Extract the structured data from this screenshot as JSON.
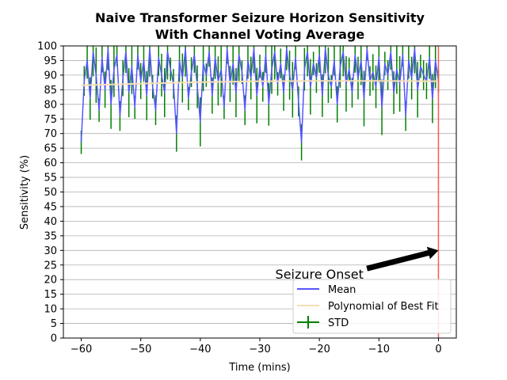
{
  "chart_data": {
    "type": "line",
    "title": "Naive Transformer Seizure Horizon Sensitivity",
    "subtitle": "With Channel Voting Average",
    "xlabel": "Time (mins)",
    "ylabel": "Sensitivity (%)",
    "xlim": [
      -63,
      3
    ],
    "ylim": [
      0,
      100
    ],
    "xticks": [
      -60,
      -50,
      -40,
      -30,
      -20,
      -10,
      0
    ],
    "yticks": [
      0,
      5,
      10,
      15,
      20,
      25,
      30,
      35,
      40,
      45,
      50,
      55,
      60,
      65,
      70,
      75,
      80,
      85,
      90,
      95,
      100
    ],
    "grid": "horizontal",
    "legend_position": "lower-right",
    "series": [
      {
        "name": "Mean",
        "color": "#5555ff",
        "x": [
          -60,
          -59.5,
          -59,
          -58.5,
          -58,
          -57.5,
          -57,
          -56.5,
          -56,
          -55.5,
          -55,
          -54.5,
          -54,
          -53.5,
          -53,
          -52.5,
          -52,
          -51.5,
          -51,
          -50.5,
          -50,
          -49.5,
          -49,
          -48.5,
          -48,
          -47.5,
          -47,
          -46.5,
          -46,
          -45.5,
          -45,
          -44.5,
          -44,
          -43.5,
          -43,
          -42.5,
          -42,
          -41.5,
          -41,
          -40.5,
          -40,
          -39.5,
          -39,
          -38.5,
          -38,
          -37.5,
          -37,
          -36.5,
          -36,
          -35.5,
          -35,
          -34.5,
          -34,
          -33.5,
          -33,
          -32.5,
          -32,
          -31.5,
          -31,
          -30.5,
          -30,
          -29.5,
          -29,
          -28.5,
          -28,
          -27.5,
          -27,
          -26.5,
          -26,
          -25.5,
          -25,
          -24.5,
          -24,
          -23.5,
          -23,
          -22.5,
          -22,
          -21.5,
          -21,
          -20.5,
          -20,
          -19.5,
          -19,
          -18.5,
          -18,
          -17.5,
          -17,
          -16.5,
          -16,
          -15.5,
          -15,
          -14.5,
          -14,
          -13.5,
          -13,
          -12.5,
          -12,
          -11.5,
          -11,
          -10.5,
          -10,
          -9.5,
          -9,
          -8.5,
          -8,
          -7.5,
          -7,
          -6.5,
          -6,
          -5.5,
          -5,
          -4.5,
          -4,
          -3.5,
          -3,
          -2.5,
          -2,
          -1.5,
          -1,
          -0.5,
          0
        ],
        "values": [
          67,
          88,
          95,
          82,
          98,
          90,
          78,
          96,
          85,
          99,
          80,
          92,
          97,
          76,
          89,
          98,
          84,
          93,
          79,
          97,
          88,
          95,
          83,
          99,
          86,
          78,
          96,
          90,
          84,
          98,
          92,
          87,
          70,
          95,
          89,
          99,
          82,
          91,
          97,
          86,
          74,
          94,
          90,
          98,
          83,
          96,
          88,
          92,
          79,
          99,
          87,
          94,
          84,
          97,
          91,
          78,
          95,
          89,
          99,
          83,
          93,
          86,
          97,
          80,
          92,
          98,
          87,
          94,
          84,
          99,
          90,
          85,
          96,
          81,
          67,
          92,
          98,
          86,
          94,
          89,
          97,
          83,
          99,
          90,
          86,
          95,
          80,
          93,
          98,
          87,
          92,
          84,
          97,
          89,
          95,
          82,
          99,
          88,
          91,
          86,
          96,
          79,
          94,
          90,
          98,
          84,
          92,
          87,
          97,
          76,
          95,
          89,
          99,
          85,
          93,
          90,
          88,
          96,
          82,
          95,
          88
        ]
      },
      {
        "name": "Polynomial of Best Fit",
        "color": "#f5deb3",
        "x": [
          -60,
          -50,
          -40,
          -30,
          -20,
          -10,
          0
        ],
        "values": [
          86.5,
          87.1,
          87.6,
          87.9,
          88.0,
          88.0,
          87.9
        ]
      },
      {
        "name": "STD",
        "color": "#008000",
        "kind": "errorbar"
      }
    ],
    "annotation": {
      "text": "Seizure Onset",
      "arrow_tip": [
        0,
        30
      ],
      "text_anchor": [
        -20,
        20
      ],
      "vline_x": 0,
      "vline_color": "#ff5555"
    }
  }
}
